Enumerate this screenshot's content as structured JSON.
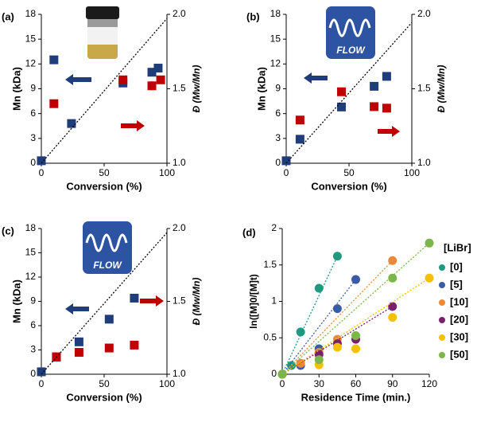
{
  "chart_data": [
    {
      "type": "scatter",
      "label": "(a)",
      "xlabel": "Conversion (%)",
      "ylabel": "Mn (kDa)",
      "y2label": "Đ (Mw/Mn)",
      "xlim": [
        0,
        100
      ],
      "xticks": [
        0,
        50,
        100
      ],
      "ylim": [
        0,
        18
      ],
      "yticks": [
        0,
        3,
        6,
        9,
        12,
        15,
        18
      ],
      "y2lim": [
        1,
        2
      ],
      "y2ticks": [
        {
          "value": 1,
          "label": "1.0"
        },
        {
          "value": 1.5,
          "label": "1.5"
        },
        {
          "value": 2,
          "label": "2.0"
        }
      ],
      "series": [
        {
          "color": "#1f3d7a",
          "x": [
            0,
            10,
            24,
            65,
            88,
            93
          ],
          "values": [
            0.3,
            12.5,
            4.8,
            9.7,
            11.0,
            11.5
          ]
        },
        {
          "color": "#c00000",
          "axis": "y2",
          "x": [
            10,
            65,
            88,
            95
          ],
          "values": [
            1.4,
            1.56,
            1.52,
            1.56
          ]
        },
        {
          "color": "#000000",
          "style": "dotted",
          "x": [
            0,
            100
          ],
          "values": [
            0,
            17.5
          ]
        }
      ]
    },
    {
      "type": "scatter",
      "label": "(b)",
      "annotation": "FLOW",
      "xlabel": "Conversion (%)",
      "ylabel": "Mn (kDa)",
      "y2label": "Đ (Mw/Mn)",
      "xlim": [
        0,
        100
      ],
      "xticks": [
        0,
        50,
        100
      ],
      "ylim": [
        0,
        18
      ],
      "yticks": [
        0,
        3,
        6,
        9,
        12,
        15,
        18
      ],
      "y2lim": [
        1,
        2
      ],
      "y2ticks": [
        {
          "value": 1,
          "label": "1.0"
        },
        {
          "value": 1.5,
          "label": "1.5"
        },
        {
          "value": 2,
          "label": "2.0"
        }
      ],
      "series": [
        {
          "color": "#1f3d7a",
          "x": [
            0,
            11,
            44,
            70,
            80
          ],
          "values": [
            0.3,
            2.9,
            6.8,
            9.3,
            10.5
          ]
        },
        {
          "color": "#c00000",
          "axis": "y2",
          "x": [
            11,
            44,
            70,
            80
          ],
          "values": [
            1.29,
            1.48,
            1.38,
            1.37
          ]
        },
        {
          "color": "#000000",
          "style": "dotted",
          "x": [
            0,
            100
          ],
          "values": [
            0,
            17
          ]
        }
      ]
    },
    {
      "type": "scatter",
      "label": "(c)",
      "annotation": "FLOW",
      "xlabel": "Conversion (%)",
      "ylabel": "Mn (kDa)",
      "y2label": "Đ (Mw/Mn)",
      "xlim": [
        0,
        100
      ],
      "xticks": [
        0,
        50,
        100
      ],
      "ylim": [
        0,
        18
      ],
      "yticks": [
        0,
        3,
        6,
        9,
        12,
        15,
        18
      ],
      "y2lim": [
        1,
        2
      ],
      "y2ticks": [
        {
          "value": 1,
          "label": "1.0"
        },
        {
          "value": 1.5,
          "label": "1.5"
        },
        {
          "value": 2,
          "label": "2.0"
        }
      ],
      "series": [
        {
          "color": "#1f3d7a",
          "x": [
            0,
            12,
            30,
            54,
            74
          ],
          "values": [
            0.3,
            2.1,
            4.0,
            6.8,
            9.4
          ]
        },
        {
          "color": "#c00000",
          "axis": "y2",
          "x": [
            12,
            30,
            54,
            74
          ],
          "values": [
            1.12,
            1.15,
            1.18,
            1.2
          ]
        },
        {
          "color": "#000000",
          "style": "dotted",
          "x": [
            0,
            100
          ],
          "values": [
            0,
            17.5
          ]
        }
      ]
    },
    {
      "type": "scatter",
      "marker": "circle",
      "label": "(d)",
      "xlabel": "Residence Time (min.)",
      "ylabel": "ln([M]0/[M]t)",
      "legend_title": "[LiBr]",
      "xlim": [
        0,
        120
      ],
      "xticks": [
        0,
        30,
        60,
        90,
        120
      ],
      "ylim": [
        0,
        2
      ],
      "yticks": [
        0,
        0.5,
        1,
        1.5,
        2
      ],
      "series": [
        {
          "name": "[0]",
          "color": "#1f9a80",
          "x": [
            0,
            7.5,
            15,
            30,
            45
          ],
          "values": [
            0,
            0.12,
            0.58,
            1.18,
            1.62
          ]
        },
        {
          "name": "[5]",
          "color": "#3a5ca8",
          "x": [
            0,
            15,
            30,
            45,
            60
          ],
          "values": [
            0,
            0.12,
            0.35,
            0.9,
            1.3
          ]
        },
        {
          "name": "[10]",
          "color": "#ed8838",
          "x": [
            0,
            15,
            30,
            45,
            90
          ],
          "values": [
            0,
            0.15,
            0.3,
            0.48,
            1.56
          ]
        },
        {
          "name": "[20]",
          "color": "#7a1f6e",
          "x": [
            0,
            30,
            45,
            60,
            90
          ],
          "values": [
            0,
            0.27,
            0.42,
            0.48,
            0.93
          ]
        },
        {
          "name": "[30]",
          "color": "#f5c000",
          "x": [
            0,
            30,
            45,
            60,
            90,
            120
          ],
          "values": [
            0,
            0.13,
            0.37,
            0.35,
            0.78,
            1.32
          ]
        },
        {
          "name": "[50]",
          "color": "#7ab648",
          "x": [
            0,
            30,
            60,
            90,
            120
          ],
          "values": [
            0,
            0.2,
            0.53,
            1.32,
            1.8
          ]
        }
      ]
    }
  ]
}
